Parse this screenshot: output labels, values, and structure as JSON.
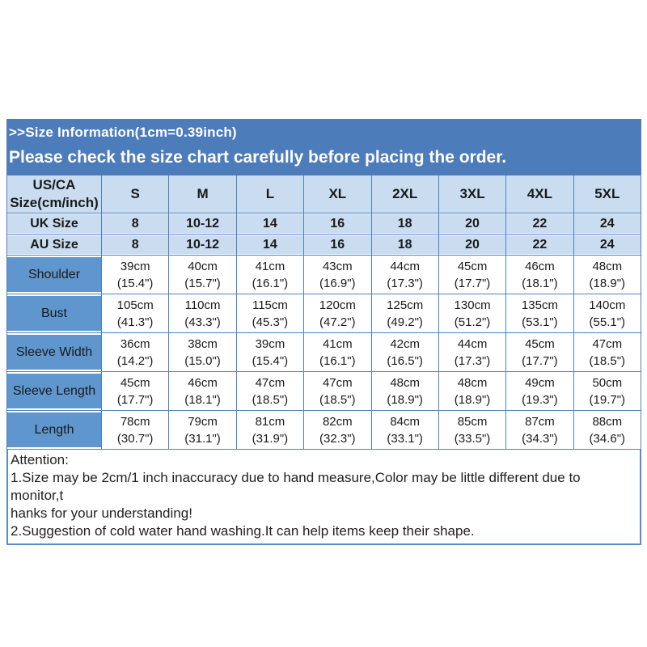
{
  "colors": {
    "banner_blue": "#4d7cbb",
    "light_blue": "#c9dcf0",
    "label_blue": "#5e96cd",
    "border_blue": "#4f81bd",
    "attention_border_blue": "#5b8bc4"
  },
  "banner": {
    "line1": ">>Size Information(1cm=0.39inch)",
    "line2": "Please check the size chart carefully before placing the order."
  },
  "table": {
    "corner_label": "US/CA\nSize(cm/inch)",
    "size_headers": [
      "S",
      "M",
      "L",
      "XL",
      "2XL",
      "3XL",
      "4XL",
      "5XL"
    ],
    "size_rows": [
      {
        "label": "UK Size",
        "values": [
          "8",
          "10-12",
          "14",
          "16",
          "18",
          "20",
          "22",
          "24"
        ]
      },
      {
        "label": "AU  Size",
        "values": [
          "8",
          "10-12",
          "14",
          "16",
          "18",
          "20",
          "22",
          "24"
        ]
      }
    ],
    "measure_rows": [
      {
        "label": "Shoulder",
        "values": [
          "39cm\n(15.4\")",
          "40cm\n(15.7\")",
          "41cm\n(16.1\")",
          "43cm\n(16.9\")",
          "44cm\n(17.3\")",
          "45cm\n(17.7\")",
          "46cm\n(18.1\")",
          "48cm\n(18.9\")"
        ]
      },
      {
        "label": "Bust",
        "values": [
          "105cm\n(41.3\")",
          "110cm\n(43.3\")",
          "115cm\n(45.3\")",
          "120cm\n(47.2\")",
          "125cm\n(49.2\")",
          "130cm\n(51.2\")",
          "135cm\n(53.1\")",
          "140cm\n(55.1\")"
        ]
      },
      {
        "label": "Sleeve Width",
        "values": [
          "36cm\n(14.2\")",
          "38cm\n(15.0\")",
          "39cm\n(15.4\")",
          "41cm\n(16.1\")",
          "42cm\n(16.5\")",
          "44cm\n(17.3\")",
          "45cm\n(17.7\")",
          "47cm\n(18.5\")"
        ]
      },
      {
        "label": "Sleeve Length",
        "values": [
          "45cm\n(17.7\")",
          "46cm\n(18.1\")",
          "47cm\n(18.5\")",
          "47cm\n(18.5\")",
          "48cm\n(18.9\")",
          "48cm\n(18.9\")",
          "49cm\n(19.3\")",
          "50cm\n(19.7\")"
        ]
      },
      {
        "label": "Length",
        "values": [
          "78cm\n(30.7\")",
          "79cm\n(31.1\")",
          "81cm\n(31.9\")",
          "82cm\n(32.3\")",
          "84cm\n(33.1\")",
          "85cm\n(33.5\")",
          "87cm\n(34.3\")",
          "88cm\n(34.6\")"
        ]
      }
    ]
  },
  "attention": {
    "title": "Attention:",
    "lines": [
      "1.Size may be 2cm/1 inch inaccuracy due to hand measure,Color may be little different due to monitor,t",
      "hanks for your understanding!",
      "2.Suggestion of cold water hand washing.It can help items keep their shape."
    ]
  }
}
